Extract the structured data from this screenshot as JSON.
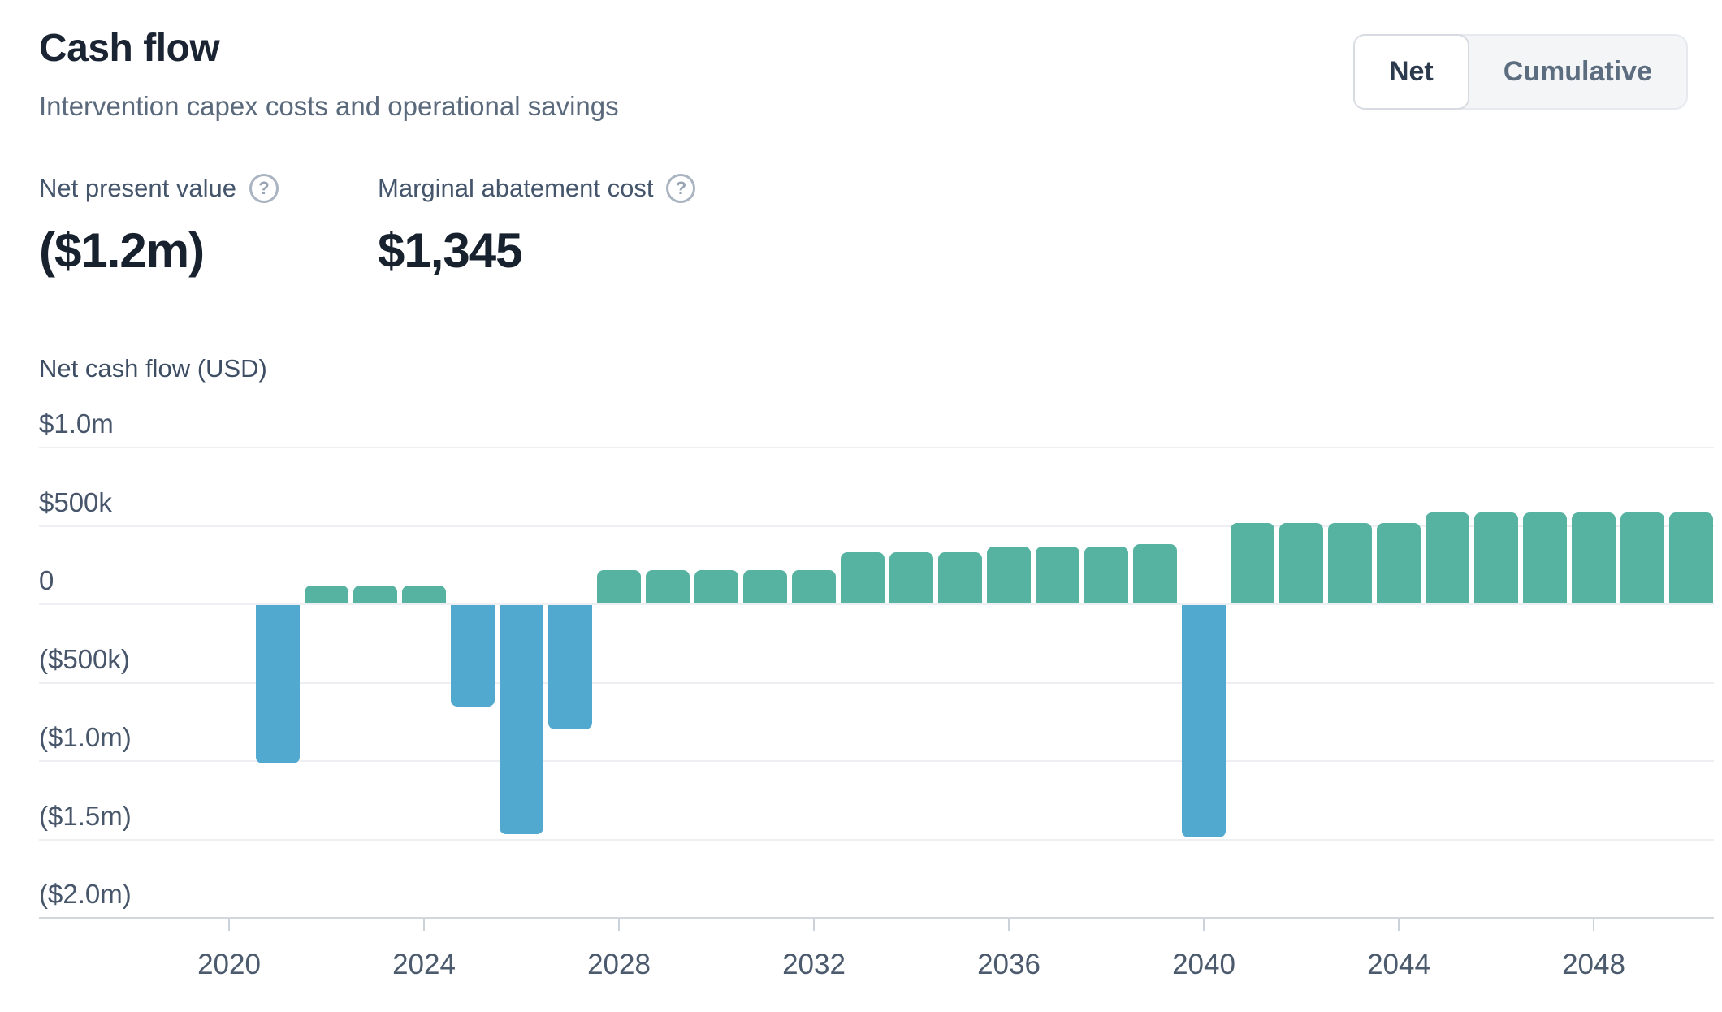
{
  "header": {
    "title": "Cash flow",
    "subtitle": "Intervention capex costs and operational savings"
  },
  "toggle": {
    "options": [
      "Net",
      "Cumulative"
    ],
    "selected": "Net"
  },
  "metrics": [
    {
      "label": "Net present value",
      "value": "($1.2m)",
      "icon": "question-circle-icon",
      "icon_glyph": "?"
    },
    {
      "label": "Marginal abatement cost",
      "value": "$1,345",
      "icon": "question-circle-icon",
      "icon_glyph": "?"
    }
  ],
  "chart_data": {
    "type": "bar",
    "ylabel": "Net cash flow (USD)",
    "unit": "USD thousands",
    "x": [
      2021,
      2022,
      2023,
      2024,
      2025,
      2026,
      2027,
      2028,
      2029,
      2030,
      2031,
      2032,
      2033,
      2034,
      2035,
      2036,
      2037,
      2038,
      2039,
      2040,
      2041,
      2042,
      2043,
      2044,
      2045,
      2046,
      2047,
      2048,
      2049,
      2050
    ],
    "values_usd_thousands": [
      -1020,
      115,
      115,
      115,
      -660,
      -1470,
      -805,
      215,
      215,
      215,
      215,
      215,
      325,
      325,
      325,
      365,
      365,
      365,
      380,
      -1490,
      515,
      515,
      515,
      515,
      580,
      580,
      580,
      580,
      580,
      580
    ],
    "x_ticks": [
      2020,
      2024,
      2028,
      2032,
      2036,
      2040,
      2044,
      2048
    ],
    "y_ticks": [
      {
        "label": "$1.0m",
        "value": 1000
      },
      {
        "label": "$500k",
        "value": 500
      },
      {
        "label": "0",
        "value": 0
      },
      {
        "label": "($500k)",
        "value": -500
      },
      {
        "label": "($1.0m)",
        "value": -1000
      },
      {
        "label": "($1.5m)",
        "value": -1500
      },
      {
        "label": "($2.0m)",
        "value": -2000
      }
    ],
    "ylim": [
      -2000,
      1000
    ],
    "grid": true,
    "legend": false,
    "positive_color": "#57B3A1",
    "negative_color": "#52A9D0"
  }
}
